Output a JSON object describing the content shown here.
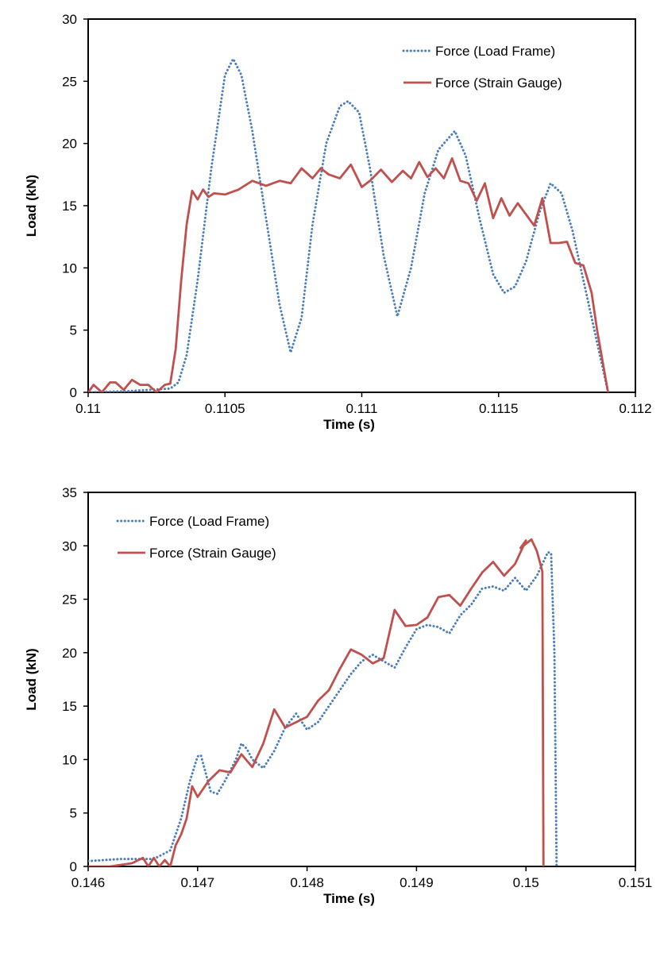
{
  "chart_data": [
    {
      "type": "line",
      "title": "",
      "xlabel": "Time (s)",
      "ylabel": "Load (kN)",
      "xlim": [
        0.11,
        0.112
      ],
      "ylim": [
        0,
        30
      ],
      "xticks": [
        0.11,
        0.1105,
        0.111,
        0.1115,
        0.112
      ],
      "xtick_labels": [
        "0.11",
        "0.1105",
        "0.111",
        "0.1115",
        "0.112"
      ],
      "yticks": [
        0,
        5,
        10,
        15,
        20,
        25,
        30
      ],
      "ytick_labels": [
        "0",
        "5",
        "10",
        "15",
        "20",
        "25",
        "30"
      ],
      "legend_position": "top-right",
      "series": [
        {
          "name": "Force (Load Frame)",
          "color": "#4a7ebb",
          "style": "dotted",
          "x": [
            0.11,
            0.11015,
            0.1103,
            0.11033,
            0.11036,
            0.1104,
            0.11045,
            0.1105,
            0.11053,
            0.11056,
            0.1106,
            0.11065,
            0.1107,
            0.11074,
            0.11078,
            0.11082,
            0.11087,
            0.11092,
            0.11095,
            0.11099,
            0.11103,
            0.11108,
            0.11113,
            0.11118,
            0.11123,
            0.11128,
            0.11134,
            0.11138,
            0.11143,
            0.11148,
            0.11152,
            0.11156,
            0.1116,
            0.11165,
            0.11169,
            0.11173,
            0.11177,
            0.1118,
            0.11184,
            0.11187,
            0.1119
          ],
          "y": [
            0,
            0.1,
            0.3,
            0.8,
            3,
            9,
            18,
            25.5,
            26.8,
            25.5,
            21,
            14,
            7,
            3.2,
            6,
            13.5,
            20,
            23,
            23.4,
            22.5,
            18,
            11,
            6.1,
            10,
            16,
            19.5,
            21,
            19,
            14,
            9.5,
            8,
            8.5,
            10.5,
            14.5,
            16.8,
            16,
            13,
            10,
            6,
            3,
            0
          ]
        },
        {
          "name": "Force (Strain Gauge)",
          "color": "#c0504d",
          "style": "solid",
          "x": [
            0.11,
            0.11002,
            0.11005,
            0.11008,
            0.1101,
            0.11013,
            0.11016,
            0.11019,
            0.11022,
            0.11025,
            0.11028,
            0.1103,
            0.11032,
            0.11034,
            0.11036,
            0.11038,
            0.1104,
            0.11042,
            0.11044,
            0.11046,
            0.1105,
            0.11055,
            0.1106,
            0.11065,
            0.1107,
            0.11074,
            0.11078,
            0.11082,
            0.11085,
            0.11088,
            0.11092,
            0.11096,
            0.111,
            0.11103,
            0.11107,
            0.11111,
            0.11115,
            0.11118,
            0.11121,
            0.11124,
            0.11127,
            0.1113,
            0.11133,
            0.11136,
            0.11139,
            0.11142,
            0.11145,
            0.11148,
            0.11151,
            0.11154,
            0.11157,
            0.1116,
            0.11163,
            0.11166,
            0.11169,
            0.11172,
            0.11175,
            0.11178,
            0.11181,
            0.11184,
            0.11186,
            0.11188,
            0.1119
          ],
          "y": [
            0,
            0.6,
            0,
            0.8,
            0.8,
            0.2,
            1,
            0.6,
            0.6,
            0,
            0.6,
            0.7,
            3.5,
            9,
            13.5,
            16.2,
            15.5,
            16.3,
            15.7,
            16,
            15.9,
            16.3,
            17,
            16.6,
            17,
            16.8,
            18,
            17.2,
            18,
            17.5,
            17.2,
            18.3,
            16.5,
            17,
            17.9,
            16.9,
            17.8,
            17.2,
            18.5,
            17.3,
            18,
            17.2,
            18.8,
            17,
            16.8,
            15.4,
            16.8,
            14,
            15.6,
            14.2,
            15.2,
            14.3,
            13.4,
            15.6,
            12,
            12,
            12.1,
            10.4,
            10.2,
            8,
            5,
            2.5,
            0
          ]
        }
      ]
    },
    {
      "type": "line",
      "title": "",
      "xlabel": "Time (s)",
      "ylabel": "Load (kN)",
      "xlim": [
        0.146,
        0.151
      ],
      "ylim": [
        0,
        35
      ],
      "xticks": [
        0.146,
        0.147,
        0.148,
        0.149,
        0.15,
        0.151
      ],
      "xtick_labels": [
        "0.146",
        "0.147",
        "0.148",
        "0.149",
        "0.15",
        "0.151"
      ],
      "yticks": [
        0,
        5,
        10,
        15,
        20,
        25,
        30,
        35
      ],
      "ytick_labels": [
        "0",
        "5",
        "10",
        "15",
        "20",
        "25",
        "30",
        "35"
      ],
      "legend_position": "top-left",
      "series": [
        {
          "name": "Force (Load Frame)",
          "color": "#4a7ebb",
          "style": "dotted",
          "x": [
            0.146,
            0.1463,
            0.1466,
            0.14675,
            0.14685,
            0.14693,
            0.147,
            0.14703,
            0.14712,
            0.14718,
            0.14725,
            0.1473,
            0.14735,
            0.1474,
            0.14745,
            0.1475,
            0.1476,
            0.1477,
            0.1478,
            0.1479,
            0.148,
            0.1481,
            0.1482,
            0.1483,
            0.1484,
            0.1485,
            0.1486,
            0.1487,
            0.1488,
            0.1489,
            0.149,
            0.1491,
            0.1492,
            0.1493,
            0.1494,
            0.1495,
            0.1496,
            0.1497,
            0.1498,
            0.1499,
            0.15,
            0.1501,
            0.1502,
            0.15023,
            0.15026,
            0.15028
          ],
          "y": [
            0.5,
            0.7,
            0.7,
            1.5,
            4.5,
            8,
            10.3,
            10.4,
            7,
            6.8,
            8,
            9,
            10,
            11.5,
            11,
            10,
            9.2,
            10.8,
            13,
            14.3,
            12.8,
            13.5,
            15,
            16.5,
            18,
            19.2,
            19.8,
            19.2,
            18.6,
            20.5,
            22.2,
            22.6,
            22.4,
            21.8,
            23.5,
            24.5,
            26,
            26.2,
            25.8,
            27,
            25.8,
            27.2,
            29.4,
            29.3,
            20,
            0
          ]
        },
        {
          "name": "Force (Strain Gauge)",
          "color": "#c0504d",
          "style": "solid",
          "x": [
            0.146,
            0.1462,
            0.1464,
            0.1465,
            0.14655,
            0.1466,
            0.14665,
            0.1467,
            0.14675,
            0.1468,
            0.14685,
            0.1469,
            0.14695,
            0.147,
            0.1471,
            0.1472,
            0.1473,
            0.1474,
            0.1475,
            0.1476,
            0.1477,
            0.1478,
            0.1479,
            0.148,
            0.1481,
            0.1482,
            0.1483,
            0.1484,
            0.1485,
            0.1486,
            0.1487,
            0.1488,
            0.1489,
            0.149,
            0.1491,
            0.1492,
            0.1493,
            0.1494,
            0.1495,
            0.1496,
            0.1497,
            0.1498,
            0.1499,
            0.15,
            0.14995,
            0.15005,
            0.1501,
            0.15015,
            0.15016
          ],
          "y": [
            0,
            0,
            0.3,
            0.8,
            0,
            0.8,
            0,
            0.6,
            0,
            2,
            3,
            4.5,
            7.5,
            6.5,
            8,
            9,
            8.8,
            10.5,
            9.3,
            11.5,
            14.7,
            13,
            13.5,
            14,
            15.5,
            16.5,
            18.5,
            20.3,
            19.8,
            19,
            19.5,
            24,
            22.5,
            22.6,
            23.3,
            25.2,
            25.4,
            24.4,
            26,
            27.5,
            28.5,
            27.2,
            28.3,
            30.5,
            29.8,
            30.6,
            29.5,
            27.6,
            0
          ]
        }
      ]
    }
  ]
}
